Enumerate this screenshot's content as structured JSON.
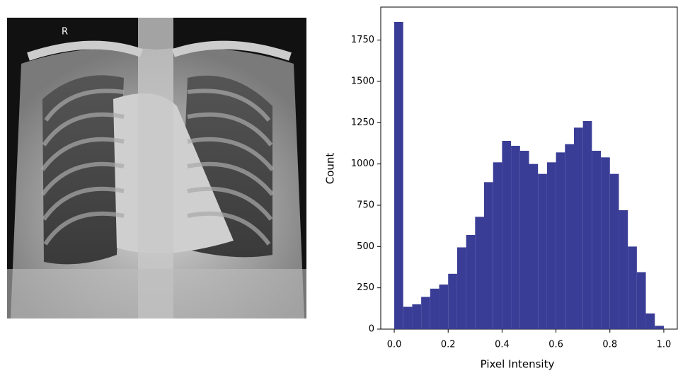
{
  "image": {
    "marker": "R"
  },
  "chart_data": {
    "type": "histogram",
    "xlabel": "Pixel Intensity",
    "ylabel": "Count",
    "bins": [
      0,
      0.0333,
      0.0667,
      0.1,
      0.1333,
      0.1667,
      0.2,
      0.2333,
      0.2667,
      0.3,
      0.3333,
      0.3667,
      0.4,
      0.4333,
      0.4667,
      0.5,
      0.5333,
      0.5667,
      0.6,
      0.6333,
      0.6667,
      0.7,
      0.7333,
      0.7667,
      0.8,
      0.8333,
      0.8667,
      0.9,
      0.9333,
      0.9667,
      1
    ],
    "values": [
      1860,
      135,
      150,
      195,
      245,
      270,
      335,
      495,
      570,
      680,
      890,
      1010,
      1140,
      1110,
      1080,
      1000,
      940,
      1010,
      1070,
      1120,
      1220,
      1260,
      1080,
      1040,
      940,
      720,
      500,
      345,
      95,
      20
    ],
    "color": "#3a3d96",
    "xlim": [
      -0.05,
      1.05
    ],
    "xticks": [
      {
        "value": 0,
        "label": "0.0"
      },
      0.2,
      0.4,
      0.6,
      0.8,
      {
        "value": 1,
        "label": "1.0"
      }
    ],
    "ylim": [
      0,
      1950
    ],
    "yticks": [
      0,
      250,
      500,
      750,
      1000,
      1250,
      1500,
      1750
    ],
    "grid": false
  }
}
